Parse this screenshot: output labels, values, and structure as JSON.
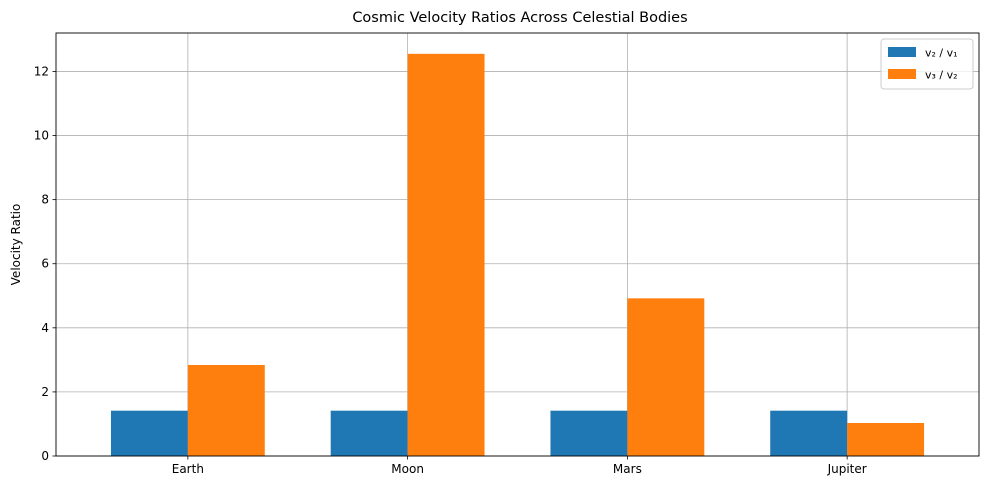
{
  "chart_data": {
    "type": "bar",
    "title": "Cosmic Velocity Ratios Across Celestial Bodies",
    "xlabel": "",
    "ylabel": "Velocity Ratio",
    "categories": [
      "Earth",
      "Moon",
      "Mars",
      "Jupiter"
    ],
    "series": [
      {
        "name": "v₂ / v₁",
        "values": [
          1.414,
          1.414,
          1.414,
          1.414
        ],
        "color": "#1f77b4"
      },
      {
        "name": "v₃ / v₂",
        "values": [
          2.84,
          12.55,
          4.92,
          1.03
        ],
        "color": "#ff7f0e"
      }
    ],
    "ylim": [
      0,
      13.2
    ],
    "yticks": [
      0,
      2,
      4,
      6,
      8,
      10,
      12
    ],
    "grid": true,
    "legend_position": "top-right"
  }
}
